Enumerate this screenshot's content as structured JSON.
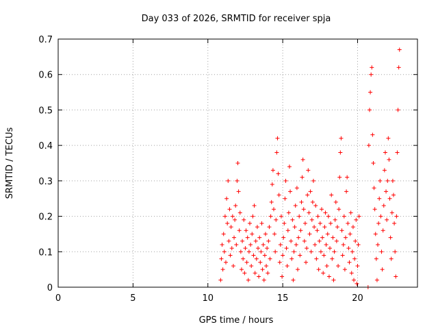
{
  "chart_data": {
    "type": "scatter",
    "title": "Day 033 of 2026, SRMTID for receiver spja",
    "xlabel": "GPS time / hours",
    "ylabel": "SRMTID / TECUs",
    "xlim": [
      0,
      24
    ],
    "ylim": [
      0,
      0.7
    ],
    "xticks": [
      0,
      5,
      10,
      15,
      20
    ],
    "xtick_labels": [
      "0",
      "5",
      "10",
      "15",
      "20"
    ],
    "yticks": [
      0,
      0.1,
      0.2,
      0.3,
      0.4,
      0.5,
      0.6,
      0.7
    ],
    "ytick_labels": [
      "0",
      "0.1",
      "0.2",
      "0.3",
      "0.4",
      "0.5",
      "0.6",
      "0.7"
    ],
    "grid": true,
    "marker": "+",
    "series": [
      {
        "name": "SRMTID",
        "color": "#ff0000",
        "points": [
          [
            10.85,
            0.02
          ],
          [
            10.9,
            0.08
          ],
          [
            10.95,
            0.12
          ],
          [
            11.0,
            0.05
          ],
          [
            11.05,
            0.15
          ],
          [
            11.1,
            0.1
          ],
          [
            11.15,
            0.2
          ],
          [
            11.2,
            0.07
          ],
          [
            11.25,
            0.25
          ],
          [
            11.3,
            0.18
          ],
          [
            11.35,
            0.3
          ],
          [
            11.4,
            0.13
          ],
          [
            11.45,
            0.22
          ],
          [
            11.5,
            0.09
          ],
          [
            11.55,
            0.17
          ],
          [
            11.6,
            0.11
          ],
          [
            11.65,
            0.2
          ],
          [
            11.7,
            0.06
          ],
          [
            11.75,
            0.14
          ],
          [
            11.8,
            0.19
          ],
          [
            11.85,
            0.23
          ],
          [
            11.9,
            0.12
          ],
          [
            11.95,
            0.3
          ],
          [
            12.0,
            0.35
          ],
          [
            12.05,
            0.27
          ],
          [
            12.1,
            0.16
          ],
          [
            12.15,
            0.21
          ],
          [
            12.2,
            0.1
          ],
          [
            12.25,
            0.05
          ],
          [
            12.3,
            0.13
          ],
          [
            12.35,
            0.08
          ],
          [
            12.4,
            0.19
          ],
          [
            12.45,
            0.04
          ],
          [
            12.5,
            0.11
          ],
          [
            12.55,
            0.16
          ],
          [
            12.6,
            0.07
          ],
          [
            12.65,
            0.14
          ],
          [
            12.7,
            0.02
          ],
          [
            12.75,
            0.1
          ],
          [
            12.8,
            0.18
          ],
          [
            12.85,
            0.12
          ],
          [
            12.9,
            0.06
          ],
          [
            12.95,
            0.15
          ],
          [
            13.0,
            0.2
          ],
          [
            13.05,
            0.09
          ],
          [
            13.1,
            0.23
          ],
          [
            13.15,
            0.04
          ],
          [
            13.2,
            0.13
          ],
          [
            13.25,
            0.08
          ],
          [
            13.3,
            0.17
          ],
          [
            13.35,
            0.11
          ],
          [
            13.4,
            0.03
          ],
          [
            13.45,
            0.14
          ],
          [
            13.5,
            0.07
          ],
          [
            13.55,
            0.1
          ],
          [
            13.6,
            0.18
          ],
          [
            13.65,
            0.05
          ],
          [
            13.7,
            0.12
          ],
          [
            13.75,
            0.02
          ],
          [
            13.8,
            0.09
          ],
          [
            13.85,
            0.15
          ],
          [
            13.9,
            0.06
          ],
          [
            13.95,
            0.11
          ],
          [
            14.0,
            0.04
          ],
          [
            14.05,
            0.13
          ],
          [
            14.1,
            0.17
          ],
          [
            14.15,
            0.08
          ],
          [
            14.2,
            0.2
          ],
          [
            14.25,
            0.24
          ],
          [
            14.3,
            0.29
          ],
          [
            14.35,
            0.33
          ],
          [
            14.4,
            0.22
          ],
          [
            14.45,
            0.15
          ],
          [
            14.5,
            0.1
          ],
          [
            14.55,
            0.19
          ],
          [
            14.6,
            0.38
          ],
          [
            14.65,
            0.42
          ],
          [
            14.7,
            0.32
          ],
          [
            14.75,
            0.26
          ],
          [
            14.8,
            0.07
          ],
          [
            14.85,
            0.12
          ],
          [
            14.9,
            0.2
          ],
          [
            14.95,
            0.03
          ],
          [
            15.0,
            0.09
          ],
          [
            15.05,
            0.14
          ],
          [
            15.1,
            0.18
          ],
          [
            15.15,
            0.25
          ],
          [
            15.2,
            0.3
          ],
          [
            15.25,
            0.11
          ],
          [
            15.3,
            0.06
          ],
          [
            15.35,
            0.16
          ],
          [
            15.4,
            0.21
          ],
          [
            15.45,
            0.34
          ],
          [
            15.5,
            0.27
          ],
          [
            15.55,
            0.13
          ],
          [
            15.6,
            0.08
          ],
          [
            15.65,
            0.19
          ],
          [
            15.7,
            0.02
          ],
          [
            15.75,
            0.1
          ],
          [
            15.8,
            0.17
          ],
          [
            15.85,
            0.23
          ],
          [
            15.9,
            0.12
          ],
          [
            15.95,
            0.28
          ],
          [
            16.0,
            0.05
          ],
          [
            16.05,
            0.14
          ],
          [
            16.1,
            0.2
          ],
          [
            16.15,
            0.09
          ],
          [
            16.2,
            0.16
          ],
          [
            16.25,
            0.24
          ],
          [
            16.3,
            0.31
          ],
          [
            16.35,
            0.36
          ],
          [
            16.4,
            0.22
          ],
          [
            16.45,
            0.13
          ],
          [
            16.5,
            0.18
          ],
          [
            16.55,
            0.07
          ],
          [
            16.6,
            0.11
          ],
          [
            16.65,
            0.26
          ],
          [
            16.7,
            0.33
          ],
          [
            16.75,
            0.21
          ],
          [
            16.8,
            0.15
          ],
          [
            16.85,
            0.27
          ],
          [
            16.9,
            0.1
          ],
          [
            16.95,
            0.19
          ],
          [
            17.0,
            0.24
          ],
          [
            17.05,
            0.3
          ],
          [
            17.1,
            0.17
          ],
          [
            17.15,
            0.12
          ],
          [
            17.2,
            0.23
          ],
          [
            17.25,
            0.08
          ],
          [
            17.3,
            0.16
          ],
          [
            17.35,
            0.2
          ],
          [
            17.4,
            0.05
          ],
          [
            17.45,
            0.13
          ],
          [
            17.5,
            0.18
          ],
          [
            17.55,
            0.1
          ],
          [
            17.6,
            0.22
          ],
          [
            17.65,
            0.14
          ],
          [
            17.7,
            0.04
          ],
          [
            17.75,
            0.09
          ],
          [
            17.8,
            0.17
          ],
          [
            17.85,
            0.21
          ],
          [
            17.9,
            0.12
          ],
          [
            17.95,
            0.06
          ],
          [
            18.0,
            0.15
          ],
          [
            18.05,
            0.2
          ],
          [
            18.1,
            0.03
          ],
          [
            18.15,
            0.11
          ],
          [
            18.2,
            0.18
          ],
          [
            18.25,
            0.26
          ],
          [
            18.3,
            0.08
          ],
          [
            18.35,
            0.14
          ],
          [
            18.4,
            0.02
          ],
          [
            18.45,
            0.1
          ],
          [
            18.5,
            0.19
          ],
          [
            18.55,
            0.24
          ],
          [
            18.6,
            0.13
          ],
          [
            18.65,
            0.17
          ],
          [
            18.7,
            0.06
          ],
          [
            18.75,
            0.22
          ],
          [
            18.8,
            0.31
          ],
          [
            18.85,
            0.38
          ],
          [
            18.9,
            0.42
          ],
          [
            18.95,
            0.16
          ],
          [
            19.0,
            0.09
          ],
          [
            19.05,
            0.12
          ],
          [
            19.1,
            0.2
          ],
          [
            19.15,
            0.05
          ],
          [
            19.2,
            0.14
          ],
          [
            19.25,
            0.27
          ],
          [
            19.3,
            0.31
          ],
          [
            19.35,
            0.18
          ],
          [
            19.4,
            0.11
          ],
          [
            19.45,
            0.07
          ],
          [
            19.5,
            0.15
          ],
          [
            19.55,
            0.21
          ],
          [
            19.6,
            0.04
          ],
          [
            19.65,
            0.1
          ],
          [
            19.7,
            0.17
          ],
          [
            19.75,
            0.02
          ],
          [
            19.8,
            0.08
          ],
          [
            19.85,
            0.13
          ],
          [
            19.9,
            0.19
          ],
          [
            19.95,
            0.01
          ],
          [
            20.0,
            0.06
          ],
          [
            20.05,
            0.12
          ],
          [
            20.1,
            0.2
          ],
          [
            20.7,
            0.0
          ],
          [
            20.75,
            0.4
          ],
          [
            20.8,
            0.5
          ],
          [
            20.85,
            0.55
          ],
          [
            20.9,
            0.6
          ],
          [
            20.95,
            0.62
          ],
          [
            21.0,
            0.43
          ],
          [
            21.05,
            0.35
          ],
          [
            21.1,
            0.28
          ],
          [
            21.15,
            0.22
          ],
          [
            21.2,
            0.15
          ],
          [
            21.25,
            0.08
          ],
          [
            21.3,
            0.02
          ],
          [
            21.35,
            0.12
          ],
          [
            21.4,
            0.18
          ],
          [
            21.45,
            0.25
          ],
          [
            21.5,
            0.3
          ],
          [
            21.55,
            0.2
          ],
          [
            21.6,
            0.1
          ],
          [
            21.65,
            0.05
          ],
          [
            21.7,
            0.16
          ],
          [
            21.75,
            0.23
          ],
          [
            21.8,
            0.33
          ],
          [
            21.85,
            0.38
          ],
          [
            21.9,
            0.27
          ],
          [
            21.95,
            0.19
          ],
          [
            22.0,
            0.3
          ],
          [
            22.05,
            0.42
          ],
          [
            22.1,
            0.36
          ],
          [
            22.15,
            0.25
          ],
          [
            22.2,
            0.14
          ],
          [
            22.25,
            0.08
          ],
          [
            22.3,
            0.21
          ],
          [
            22.35,
            0.3
          ],
          [
            22.4,
            0.26
          ],
          [
            22.45,
            0.18
          ],
          [
            22.5,
            0.1
          ],
          [
            22.55,
            0.03
          ],
          [
            22.6,
            0.2
          ],
          [
            22.65,
            0.38
          ],
          [
            22.7,
            0.5
          ],
          [
            22.75,
            0.62
          ],
          [
            22.8,
            0.67
          ]
        ]
      }
    ]
  }
}
